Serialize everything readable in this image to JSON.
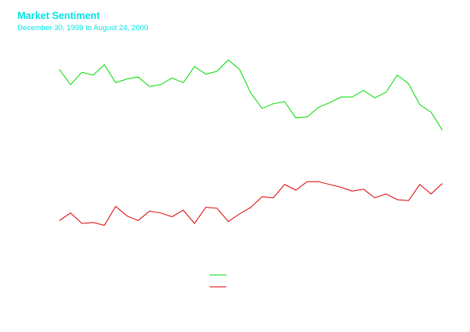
{
  "title": "Market Sentiment",
  "subtitle": "December 30, 1999 to August 24, 2000",
  "colors": {
    "title": "#00e5e5",
    "background": "#ffffff"
  },
  "chart_data": {
    "type": "line",
    "title": "Market Sentiment",
    "subtitle": "December 30, 1999 to August 24, 2000",
    "xlabel": "",
    "ylabel": "",
    "axes_visible": false,
    "grid": false,
    "legend_position": "bottom-center",
    "x_start": "1999-12-30",
    "x_end": "2000-08-24",
    "x_interval": "weekly",
    "series": [
      {
        "color": "#00dd00",
        "values": [
          93,
          109,
          96,
          99,
          88,
          107,
          103,
          101,
          111,
          109,
          102,
          107,
          90,
          98,
          95,
          83,
          93,
          118,
          134,
          129,
          127,
          144,
          143,
          133,
          128,
          122,
          122,
          115,
          123,
          117,
          99,
          108,
          130,
          138,
          157
        ]
      },
      {
        "color": "#dd0000",
        "values": [
          252,
          244,
          255,
          254,
          257,
          237,
          247,
          252,
          242,
          244,
          248,
          241,
          255,
          238,
          239,
          253,
          245,
          238,
          227,
          228,
          214,
          220,
          211,
          211,
          214,
          217,
          221,
          219,
          228,
          224,
          230,
          231,
          214,
          224,
          213
        ]
      }
    ],
    "y_range_inverted_scale": [
      70,
      270
    ]
  }
}
